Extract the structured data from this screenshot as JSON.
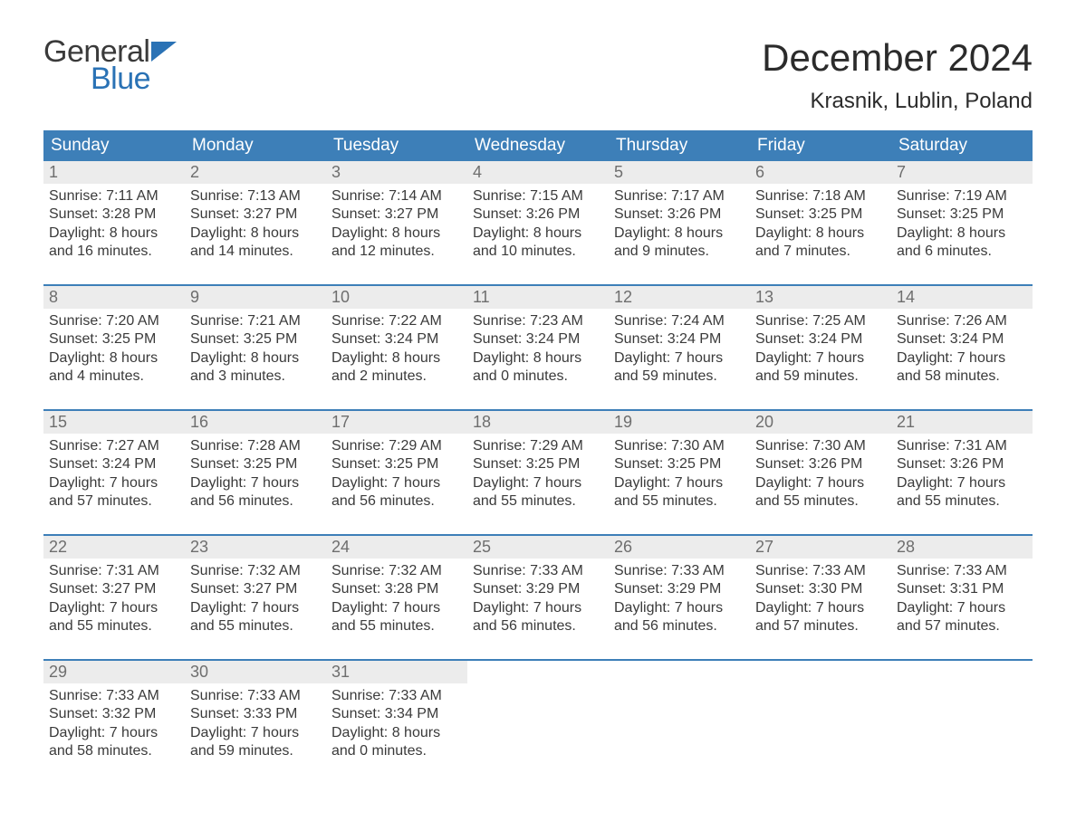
{
  "logo": {
    "text1": "General",
    "text2": "Blue"
  },
  "title": "December 2024",
  "location": "Krasnik, Lublin, Poland",
  "colors": {
    "header_bg": "#3d7fb8",
    "header_text": "#ffffff",
    "daynum_bg": "#ececec",
    "daynum_text": "#6e6e6e",
    "body_text": "#3a3a3a",
    "logo_blue": "#2a72b5",
    "week_border": "#3d7fb8",
    "page_bg": "#ffffff"
  },
  "typography": {
    "title_fontsize": 42,
    "location_fontsize": 24,
    "header_fontsize": 19,
    "daynum_fontsize": 18,
    "body_fontsize": 16,
    "logo_fontsize": 34
  },
  "weekdays": [
    "Sunday",
    "Monday",
    "Tuesday",
    "Wednesday",
    "Thursday",
    "Friday",
    "Saturday"
  ],
  "weeks": [
    [
      {
        "n": "1",
        "sr": "Sunrise: 7:11 AM",
        "ss": "Sunset: 3:28 PM",
        "d1": "Daylight: 8 hours",
        "d2": "and 16 minutes."
      },
      {
        "n": "2",
        "sr": "Sunrise: 7:13 AM",
        "ss": "Sunset: 3:27 PM",
        "d1": "Daylight: 8 hours",
        "d2": "and 14 minutes."
      },
      {
        "n": "3",
        "sr": "Sunrise: 7:14 AM",
        "ss": "Sunset: 3:27 PM",
        "d1": "Daylight: 8 hours",
        "d2": "and 12 minutes."
      },
      {
        "n": "4",
        "sr": "Sunrise: 7:15 AM",
        "ss": "Sunset: 3:26 PM",
        "d1": "Daylight: 8 hours",
        "d2": "and 10 minutes."
      },
      {
        "n": "5",
        "sr": "Sunrise: 7:17 AM",
        "ss": "Sunset: 3:26 PM",
        "d1": "Daylight: 8 hours",
        "d2": "and 9 minutes."
      },
      {
        "n": "6",
        "sr": "Sunrise: 7:18 AM",
        "ss": "Sunset: 3:25 PM",
        "d1": "Daylight: 8 hours",
        "d2": "and 7 minutes."
      },
      {
        "n": "7",
        "sr": "Sunrise: 7:19 AM",
        "ss": "Sunset: 3:25 PM",
        "d1": "Daylight: 8 hours",
        "d2": "and 6 minutes."
      }
    ],
    [
      {
        "n": "8",
        "sr": "Sunrise: 7:20 AM",
        "ss": "Sunset: 3:25 PM",
        "d1": "Daylight: 8 hours",
        "d2": "and 4 minutes."
      },
      {
        "n": "9",
        "sr": "Sunrise: 7:21 AM",
        "ss": "Sunset: 3:25 PM",
        "d1": "Daylight: 8 hours",
        "d2": "and 3 minutes."
      },
      {
        "n": "10",
        "sr": "Sunrise: 7:22 AM",
        "ss": "Sunset: 3:24 PM",
        "d1": "Daylight: 8 hours",
        "d2": "and 2 minutes."
      },
      {
        "n": "11",
        "sr": "Sunrise: 7:23 AM",
        "ss": "Sunset: 3:24 PM",
        "d1": "Daylight: 8 hours",
        "d2": "and 0 minutes."
      },
      {
        "n": "12",
        "sr": "Sunrise: 7:24 AM",
        "ss": "Sunset: 3:24 PM",
        "d1": "Daylight: 7 hours",
        "d2": "and 59 minutes."
      },
      {
        "n": "13",
        "sr": "Sunrise: 7:25 AM",
        "ss": "Sunset: 3:24 PM",
        "d1": "Daylight: 7 hours",
        "d2": "and 59 minutes."
      },
      {
        "n": "14",
        "sr": "Sunrise: 7:26 AM",
        "ss": "Sunset: 3:24 PM",
        "d1": "Daylight: 7 hours",
        "d2": "and 58 minutes."
      }
    ],
    [
      {
        "n": "15",
        "sr": "Sunrise: 7:27 AM",
        "ss": "Sunset: 3:24 PM",
        "d1": "Daylight: 7 hours",
        "d2": "and 57 minutes."
      },
      {
        "n": "16",
        "sr": "Sunrise: 7:28 AM",
        "ss": "Sunset: 3:25 PM",
        "d1": "Daylight: 7 hours",
        "d2": "and 56 minutes."
      },
      {
        "n": "17",
        "sr": "Sunrise: 7:29 AM",
        "ss": "Sunset: 3:25 PM",
        "d1": "Daylight: 7 hours",
        "d2": "and 56 minutes."
      },
      {
        "n": "18",
        "sr": "Sunrise: 7:29 AM",
        "ss": "Sunset: 3:25 PM",
        "d1": "Daylight: 7 hours",
        "d2": "and 55 minutes."
      },
      {
        "n": "19",
        "sr": "Sunrise: 7:30 AM",
        "ss": "Sunset: 3:25 PM",
        "d1": "Daylight: 7 hours",
        "d2": "and 55 minutes."
      },
      {
        "n": "20",
        "sr": "Sunrise: 7:30 AM",
        "ss": "Sunset: 3:26 PM",
        "d1": "Daylight: 7 hours",
        "d2": "and 55 minutes."
      },
      {
        "n": "21",
        "sr": "Sunrise: 7:31 AM",
        "ss": "Sunset: 3:26 PM",
        "d1": "Daylight: 7 hours",
        "d2": "and 55 minutes."
      }
    ],
    [
      {
        "n": "22",
        "sr": "Sunrise: 7:31 AM",
        "ss": "Sunset: 3:27 PM",
        "d1": "Daylight: 7 hours",
        "d2": "and 55 minutes."
      },
      {
        "n": "23",
        "sr": "Sunrise: 7:32 AM",
        "ss": "Sunset: 3:27 PM",
        "d1": "Daylight: 7 hours",
        "d2": "and 55 minutes."
      },
      {
        "n": "24",
        "sr": "Sunrise: 7:32 AM",
        "ss": "Sunset: 3:28 PM",
        "d1": "Daylight: 7 hours",
        "d2": "and 55 minutes."
      },
      {
        "n": "25",
        "sr": "Sunrise: 7:33 AM",
        "ss": "Sunset: 3:29 PM",
        "d1": "Daylight: 7 hours",
        "d2": "and 56 minutes."
      },
      {
        "n": "26",
        "sr": "Sunrise: 7:33 AM",
        "ss": "Sunset: 3:29 PM",
        "d1": "Daylight: 7 hours",
        "d2": "and 56 minutes."
      },
      {
        "n": "27",
        "sr": "Sunrise: 7:33 AM",
        "ss": "Sunset: 3:30 PM",
        "d1": "Daylight: 7 hours",
        "d2": "and 57 minutes."
      },
      {
        "n": "28",
        "sr": "Sunrise: 7:33 AM",
        "ss": "Sunset: 3:31 PM",
        "d1": "Daylight: 7 hours",
        "d2": "and 57 minutes."
      }
    ],
    [
      {
        "n": "29",
        "sr": "Sunrise: 7:33 AM",
        "ss": "Sunset: 3:32 PM",
        "d1": "Daylight: 7 hours",
        "d2": "and 58 minutes."
      },
      {
        "n": "30",
        "sr": "Sunrise: 7:33 AM",
        "ss": "Sunset: 3:33 PM",
        "d1": "Daylight: 7 hours",
        "d2": "and 59 minutes."
      },
      {
        "n": "31",
        "sr": "Sunrise: 7:33 AM",
        "ss": "Sunset: 3:34 PM",
        "d1": "Daylight: 8 hours",
        "d2": "and 0 minutes."
      },
      {
        "empty": true
      },
      {
        "empty": true
      },
      {
        "empty": true
      },
      {
        "empty": true
      }
    ]
  ]
}
